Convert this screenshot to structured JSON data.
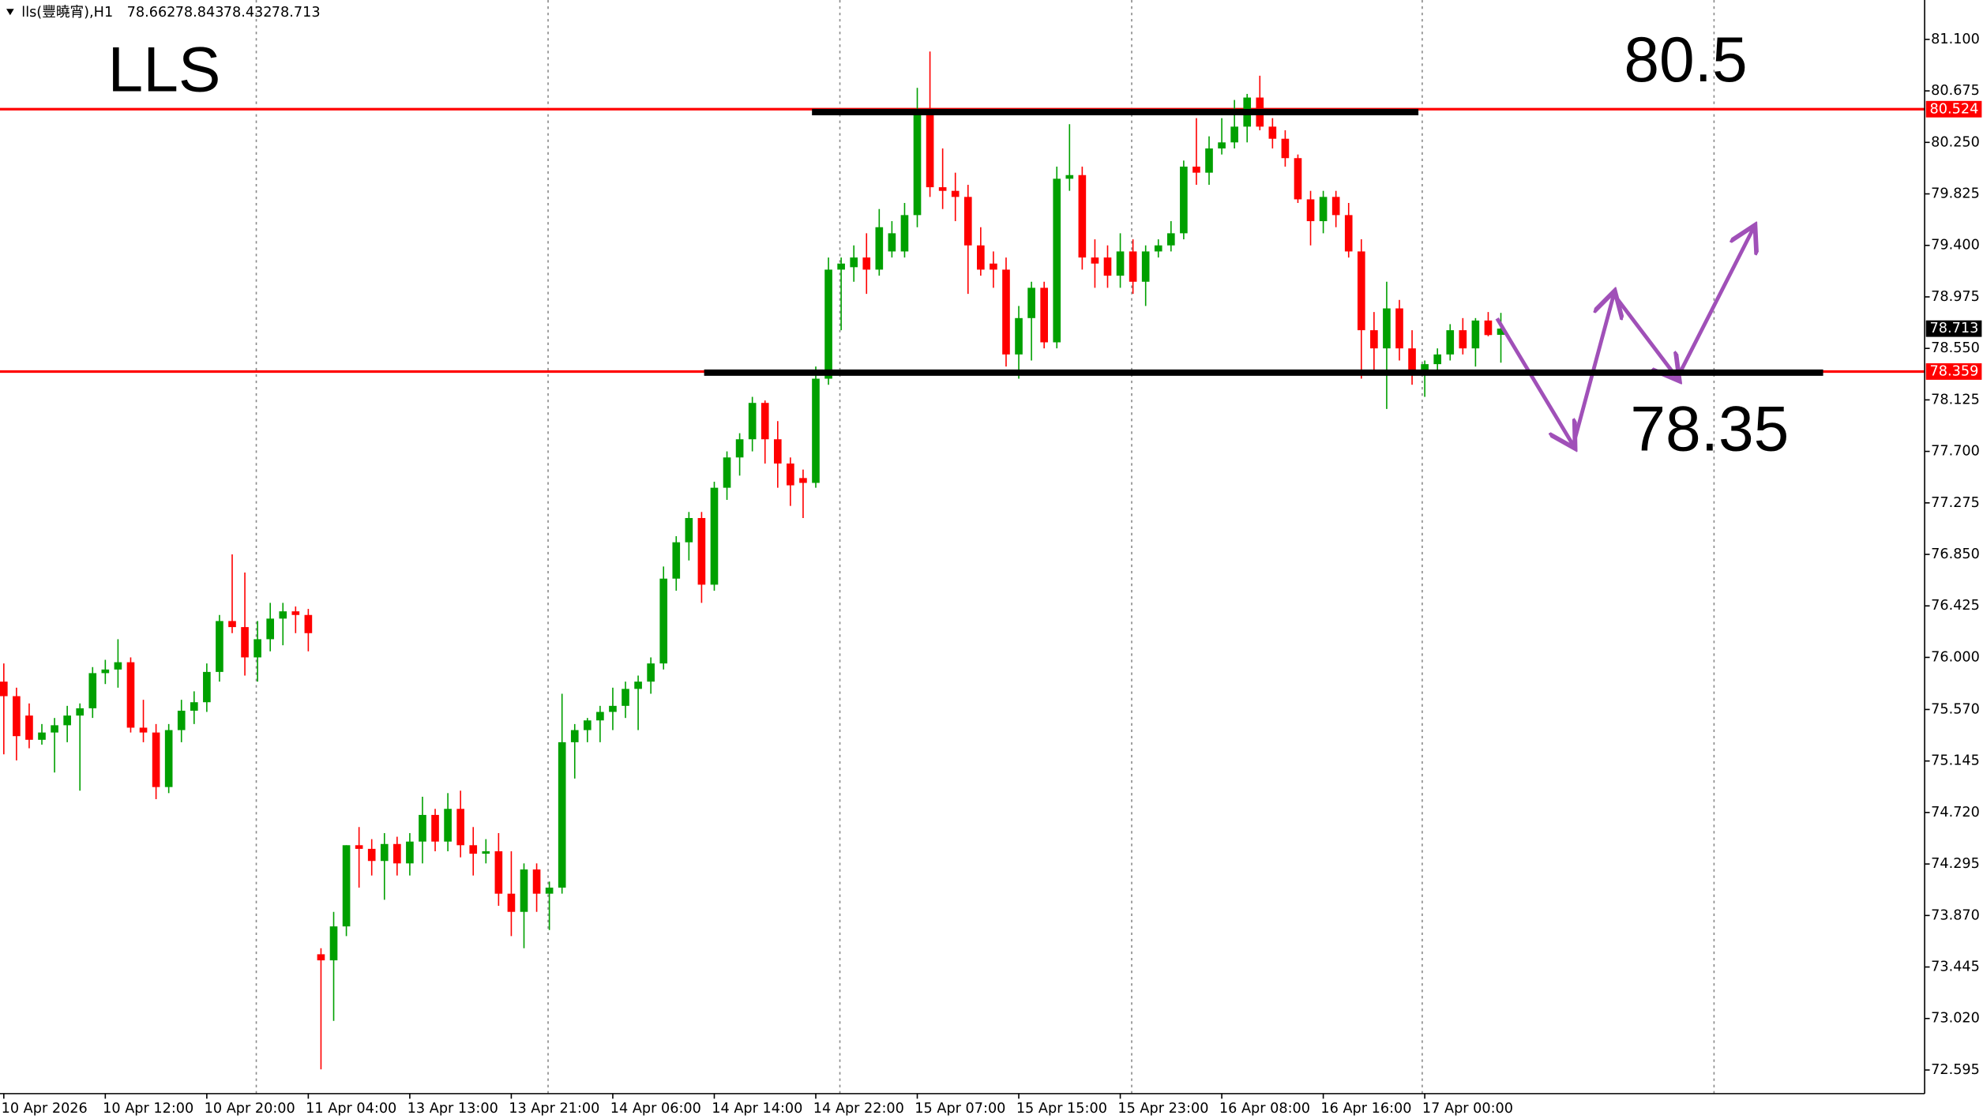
{
  "chart_data": {
    "type": "candlestick",
    "title": "lls(豐曉宵),H1",
    "categories": [
      "10 Apr 2026",
      null,
      null,
      null,
      null,
      null,
      null,
      null,
      "10 Apr 12:00",
      null,
      null,
      null,
      null,
      null,
      null,
      null,
      "10 Apr 20:00",
      null,
      null,
      null,
      null,
      null,
      null,
      null,
      "11 Apr 04:00",
      null,
      null,
      null,
      null,
      null,
      null,
      null,
      "13 Apr 13:00",
      null,
      null,
      null,
      null,
      null,
      null,
      null,
      "13 Apr 21:00",
      null,
      null,
      null,
      null,
      null,
      null,
      null,
      "14 Apr 06:00",
      null,
      null,
      null,
      null,
      null,
      null,
      null,
      "14 Apr 14:00",
      null,
      null,
      null,
      null,
      null,
      null,
      null,
      "14 Apr 22:00",
      null,
      null,
      null,
      null,
      null,
      null,
      null,
      "15 Apr 07:00",
      null,
      null,
      null,
      null,
      null,
      null,
      null,
      "15 Apr 15:00",
      null,
      null,
      null,
      null,
      null,
      null,
      null,
      "15 Apr 23:00",
      null,
      null,
      null,
      null,
      null,
      null,
      null,
      "16 Apr 08:00",
      null,
      null,
      null,
      null,
      null,
      null,
      null,
      "16 Apr 16:00",
      null,
      null,
      null,
      null,
      null,
      null,
      null,
      "17 Apr 00:00",
      null,
      null,
      null,
      null,
      null,
      null
    ],
    "open": [
      75.8,
      75.68,
      75.52,
      75.32,
      75.38,
      75.44,
      75.52,
      75.58,
      75.87,
      75.9,
      75.96,
      75.42,
      75.38,
      74.93,
      75.4,
      75.56,
      75.63,
      75.88,
      76.3,
      76.25,
      76.0,
      76.15,
      76.32,
      76.38,
      76.35,
      73.55,
      73.5,
      73.78,
      74.45,
      74.42,
      74.32,
      74.46,
      74.3,
      74.48,
      74.7,
      74.48,
      74.75,
      74.45,
      74.38,
      74.4,
      74.05,
      73.9,
      74.25,
      74.05,
      74.1,
      75.3,
      75.4,
      75.48,
      75.55,
      75.6,
      75.74,
      75.8,
      75.95,
      76.65,
      76.95,
      77.15,
      76.6,
      77.4,
      77.65,
      77.8,
      78.1,
      77.8,
      77.6,
      77.48,
      77.44,
      78.3,
      79.2,
      79.22,
      79.3,
      79.2,
      79.35,
      79.35,
      79.65,
      80.52,
      79.88,
      79.85,
      79.8,
      79.4,
      79.25,
      79.2,
      78.5,
      78.8,
      79.05,
      78.6,
      79.95,
      79.98,
      79.3,
      79.3,
      79.15,
      79.35,
      79.1,
      79.35,
      79.4,
      79.5,
      80.05,
      80.0,
      80.2,
      80.25,
      80.38,
      80.62,
      80.38,
      80.28,
      80.12,
      79.78,
      79.6,
      79.8,
      79.65,
      79.35,
      78.7,
      78.55,
      78.88,
      78.55,
      78.33,
      78.42,
      78.5,
      78.7,
      78.55,
      78.78,
      78.662
    ],
    "high": [
      75.95,
      75.75,
      75.62,
      75.45,
      75.5,
      75.6,
      75.62,
      75.92,
      75.98,
      76.15,
      76.0,
      75.65,
      75.45,
      75.45,
      75.65,
      75.72,
      75.95,
      76.35,
      76.85,
      76.7,
      76.3,
      76.45,
      76.45,
      76.42,
      76.4,
      73.6,
      73.9,
      74.45,
      74.6,
      74.5,
      74.55,
      74.52,
      74.55,
      74.85,
      74.75,
      74.88,
      74.9,
      74.6,
      74.5,
      74.55,
      74.4,
      74.3,
      74.3,
      74.15,
      75.7,
      75.45,
      75.5,
      75.6,
      75.75,
      75.8,
      75.85,
      76.0,
      76.75,
      77.0,
      77.2,
      77.2,
      77.45,
      77.7,
      77.85,
      78.15,
      78.12,
      77.95,
      77.65,
      77.55,
      78.4,
      79.3,
      79.3,
      79.4,
      79.5,
      79.7,
      79.6,
      79.75,
      80.7,
      81.0,
      80.2,
      80.0,
      79.9,
      79.55,
      79.35,
      79.3,
      78.9,
      79.1,
      79.1,
      80.05,
      80.4,
      80.05,
      79.45,
      79.4,
      79.5,
      79.45,
      79.4,
      79.45,
      79.6,
      80.1,
      80.45,
      80.3,
      80.45,
      80.6,
      80.65,
      80.8,
      80.45,
      80.35,
      80.15,
      79.85,
      79.85,
      79.85,
      79.75,
      79.45,
      78.85,
      79.1,
      78.95,
      78.7,
      78.45,
      78.55,
      78.75,
      78.8,
      78.8,
      78.85,
      78.843
    ],
    "low": [
      75.2,
      75.15,
      75.25,
      75.28,
      75.05,
      75.3,
      74.9,
      75.5,
      75.78,
      75.75,
      75.38,
      75.3,
      74.83,
      74.88,
      75.3,
      75.45,
      75.55,
      75.8,
      76.2,
      75.85,
      75.8,
      76.05,
      76.1,
      76.2,
      76.05,
      72.6,
      73.0,
      73.7,
      74.1,
      74.2,
      74.0,
      74.2,
      74.2,
      74.3,
      74.4,
      74.4,
      74.35,
      74.2,
      74.3,
      73.95,
      73.7,
      73.6,
      73.9,
      73.75,
      74.05,
      75.0,
      75.3,
      75.3,
      75.4,
      75.5,
      75.4,
      75.7,
      75.9,
      76.55,
      76.8,
      76.45,
      76.55,
      77.3,
      77.5,
      77.7,
      77.6,
      77.4,
      77.25,
      77.15,
      77.4,
      78.25,
      78.7,
      79.1,
      79.0,
      79.15,
      79.3,
      79.3,
      79.55,
      79.8,
      79.7,
      79.6,
      79.0,
      79.15,
      79.05,
      78.4,
      78.3,
      78.45,
      78.55,
      78.55,
      79.85,
      79.2,
      79.05,
      79.05,
      79.05,
      79.0,
      78.9,
      79.3,
      79.35,
      79.45,
      79.9,
      79.9,
      80.15,
      80.2,
      80.25,
      80.35,
      80.2,
      80.05,
      79.75,
      79.4,
      79.5,
      79.55,
      79.3,
      78.3,
      78.35,
      78.05,
      78.45,
      78.25,
      78.15,
      78.35,
      78.45,
      78.5,
      78.4,
      78.65,
      78.432
    ],
    "close": [
      75.68,
      75.35,
      75.32,
      75.38,
      75.44,
      75.52,
      75.58,
      75.87,
      75.9,
      75.96,
      75.42,
      75.38,
      74.93,
      75.4,
      75.56,
      75.63,
      75.88,
      76.3,
      76.25,
      76.0,
      76.15,
      76.32,
      76.38,
      76.35,
      76.2,
      73.5,
      73.78,
      74.45,
      74.42,
      74.32,
      74.46,
      74.3,
      74.48,
      74.7,
      74.48,
      74.75,
      74.45,
      74.38,
      74.4,
      74.05,
      73.9,
      74.25,
      74.05,
      74.1,
      75.3,
      75.4,
      75.48,
      75.55,
      75.6,
      75.74,
      75.8,
      75.95,
      76.65,
      76.95,
      77.15,
      76.6,
      77.4,
      77.65,
      77.8,
      78.1,
      77.8,
      77.6,
      77.42,
      77.44,
      78.3,
      79.2,
      79.25,
      79.3,
      79.2,
      79.55,
      79.5,
      79.65,
      80.52,
      79.88,
      79.85,
      79.8,
      79.4,
      79.2,
      79.2,
      78.5,
      78.8,
      79.05,
      78.6,
      79.95,
      79.98,
      79.3,
      79.25,
      79.15,
      79.35,
      79.1,
      79.35,
      79.4,
      79.5,
      80.05,
      80.0,
      80.2,
      80.25,
      80.38,
      80.62,
      80.38,
      80.28,
      80.12,
      79.78,
      79.6,
      79.8,
      79.65,
      79.35,
      78.7,
      78.55,
      78.88,
      78.55,
      78.33,
      78.42,
      78.5,
      78.7,
      78.55,
      78.78,
      78.66,
      78.713
    ],
    "up_color": "#00a000",
    "down_color": "#ff0000",
    "ylim": [
      72.4,
      81.425
    ],
    "yticks": [
      {
        "value": 81.1,
        "label": "81.100"
      },
      {
        "value": 80.675,
        "label": "80.675"
      },
      {
        "value": 80.25,
        "label": "80.250"
      },
      {
        "value": 79.825,
        "label": "79.825"
      },
      {
        "value": 79.4,
        "label": "79.400"
      },
      {
        "value": 78.975,
        "label": "78.975"
      },
      {
        "value": 78.55,
        "label": "78.550"
      },
      {
        "value": 78.125,
        "label": "78.125"
      },
      {
        "value": 77.7,
        "label": "77.700"
      },
      {
        "value": 77.275,
        "label": "77.275"
      },
      {
        "value": 76.85,
        "label": "76.850"
      },
      {
        "value": 76.425,
        "label": "76.425"
      },
      {
        "value": 76,
        "label": "76.000"
      },
      {
        "value": 75.57,
        "label": "75.570"
      },
      {
        "value": 75.145,
        "label": "75.145"
      },
      {
        "value": 74.72,
        "label": "74.720"
      },
      {
        "value": 74.295,
        "label": "74.295"
      },
      {
        "value": 73.87,
        "label": "73.870"
      },
      {
        "value": 73.445,
        "label": "73.445"
      },
      {
        "value": 73.02,
        "label": "73.020"
      },
      {
        "value": 72.595,
        "label": "72.595"
      }
    ],
    "levels": [
      80.524,
      78.359
    ],
    "level_color": "#ff0000",
    "annotations": {
      "symbol": "LLS",
      "resistance": 80.5,
      "support": 78.35
    },
    "line_color": "#000000"
  }
}
